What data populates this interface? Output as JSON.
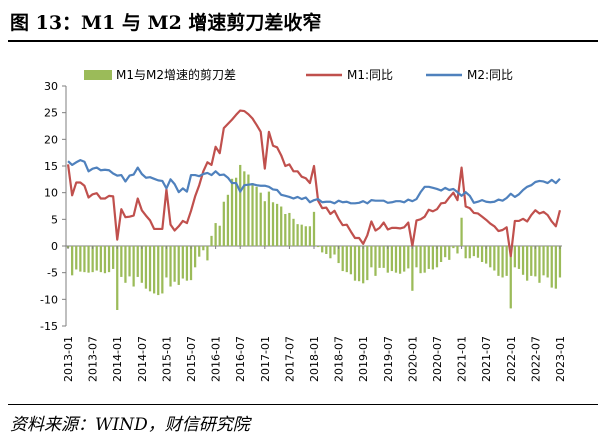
{
  "figure": {
    "title": "图 13：M1 与 M2 增速剪刀差收窄",
    "source": "资料来源：WIND，财信研究院"
  },
  "chart_data": {
    "type": "bar+line",
    "categories": [
      "2013-01",
      "2013-02",
      "2013-03",
      "2013-04",
      "2013-05",
      "2013-06",
      "2013-07",
      "2013-08",
      "2013-09",
      "2013-10",
      "2013-11",
      "2013-12",
      "2014-01",
      "2014-02",
      "2014-03",
      "2014-04",
      "2014-05",
      "2014-06",
      "2014-07",
      "2014-08",
      "2014-09",
      "2014-10",
      "2014-11",
      "2014-12",
      "2015-01",
      "2015-02",
      "2015-03",
      "2015-04",
      "2015-05",
      "2015-06",
      "2015-07",
      "2015-08",
      "2015-09",
      "2015-10",
      "2015-11",
      "2015-12",
      "2016-01",
      "2016-02",
      "2016-03",
      "2016-04",
      "2016-05",
      "2016-06",
      "2016-07",
      "2016-08",
      "2016-09",
      "2016-10",
      "2016-11",
      "2016-12",
      "2017-01",
      "2017-02",
      "2017-03",
      "2017-04",
      "2017-05",
      "2017-06",
      "2017-07",
      "2017-08",
      "2017-09",
      "2017-10",
      "2017-11",
      "2017-12",
      "2018-01",
      "2018-02",
      "2018-03",
      "2018-04",
      "2018-05",
      "2018-06",
      "2018-07",
      "2018-08",
      "2018-09",
      "2018-10",
      "2018-11",
      "2018-12",
      "2019-01",
      "2019-02",
      "2019-03",
      "2019-04",
      "2019-05",
      "2019-06",
      "2019-07",
      "2019-08",
      "2019-09",
      "2019-10",
      "2019-11",
      "2019-12",
      "2020-01",
      "2020-02",
      "2020-03",
      "2020-04",
      "2020-05",
      "2020-06",
      "2020-07",
      "2020-08",
      "2020-09",
      "2020-10",
      "2020-11",
      "2020-12",
      "2021-01",
      "2021-02",
      "2021-03",
      "2021-04",
      "2021-05",
      "2021-06",
      "2021-07",
      "2021-08",
      "2021-09",
      "2021-10",
      "2021-11",
      "2021-12",
      "2022-01",
      "2022-02",
      "2022-03",
      "2022-04",
      "2022-05",
      "2022-06",
      "2022-07",
      "2022-08",
      "2022-09",
      "2022-10",
      "2022-11",
      "2022-12",
      "2023-01"
    ],
    "tick_labels": [
      "2013-01",
      "2013-07",
      "2014-01",
      "2014-07",
      "2015-01",
      "2015-07",
      "2016-01",
      "2016-07",
      "2017-01",
      "2017-07",
      "2018-01",
      "2018-07",
      "2019-01",
      "2019-07",
      "2020-01",
      "2020-07",
      "2021-01",
      "2021-07",
      "2022-01",
      "2022-07",
      "2023-01"
    ],
    "ylim": [
      -15,
      30
    ],
    "yticks": [
      -15,
      -10,
      -5,
      0,
      5,
      10,
      15,
      20,
      25,
      30
    ],
    "legend_position": "top",
    "series": [
      {
        "name": "M1与M2增速的剪刀差",
        "kind": "bar",
        "color": "#9bbb59",
        "values": [
          -0.4,
          -5.5,
          -4.4,
          -4.8,
          -4.9,
          -5.0,
          -4.9,
          -4.6,
          -4.9,
          -5.1,
          -4.9,
          -4.3,
          -12.0,
          -5.8,
          -6.9,
          -5.7,
          -7.6,
          -5.8,
          -6.9,
          -8.0,
          -8.5,
          -8.9,
          -9.2,
          -8.9,
          -5.9,
          -7.6,
          -6.7,
          -7.3,
          -6.1,
          -6.5,
          -6.4,
          -4.0,
          -2.0,
          -0.8,
          -2.7,
          1.9,
          4.3,
          3.8,
          8.3,
          9.6,
          12.6,
          12.8,
          15.2,
          14.0,
          13.4,
          11.8,
          11.1,
          10.0,
          8.4,
          10.2,
          8.2,
          7.9,
          7.4,
          6.0,
          6.2,
          5.1,
          4.1,
          4.0,
          3.7,
          3.7,
          6.4,
          -0.2,
          -1.2,
          -1.5,
          -2.3,
          -1.6,
          -3.2,
          -4.7,
          -4.9,
          -5.3,
          -6.5,
          -6.6,
          -7.0,
          -6.4,
          -4.0,
          -5.6,
          -4.1,
          -4.1,
          -5.0,
          -4.7,
          -5.0,
          -5.2,
          -4.8,
          -4.2,
          -8.4,
          -4.0,
          -5.1,
          -5.0,
          -4.3,
          -4.4,
          -4.0,
          -3.0,
          -2.1,
          -2.6,
          -0.4,
          -1.4,
          5.3,
          -2.3,
          -2.3,
          -1.9,
          -2.2,
          -3.0,
          -3.3,
          -4.0,
          -4.6,
          -5.6,
          -5.9,
          -5.6,
          -11.7,
          -4.0,
          -4.3,
          -5.4,
          -6.5,
          -5.6,
          -5.7,
          -6.9,
          -5.5,
          -5.9,
          -7.8,
          -8.0,
          -5.9
        ]
      },
      {
        "name": "M1:同比",
        "kind": "line",
        "color": "#c0504d",
        "values": [
          15.3,
          9.5,
          11.9,
          11.9,
          11.3,
          9.1,
          9.7,
          9.9,
          8.9,
          8.9,
          9.4,
          9.3,
          1.2,
          6.9,
          5.4,
          5.5,
          5.7,
          8.9,
          6.7,
          5.7,
          4.8,
          3.2,
          3.2,
          3.2,
          10.6,
          4.0,
          2.9,
          3.7,
          4.7,
          4.3,
          6.6,
          9.3,
          11.4,
          14.0,
          15.7,
          15.2,
          18.6,
          17.4,
          22.1,
          22.9,
          23.7,
          24.6,
          25.4,
          25.3,
          24.7,
          23.9,
          22.7,
          21.4,
          14.5,
          21.4,
          18.8,
          18.5,
          17.0,
          15.0,
          15.3,
          14.0,
          14.0,
          13.0,
          12.7,
          11.8,
          15.0,
          8.5,
          7.1,
          7.2,
          6.0,
          6.6,
          5.1,
          3.9,
          4.0,
          2.7,
          1.5,
          1.5,
          0.4,
          2.0,
          4.6,
          2.9,
          3.4,
          4.4,
          3.1,
          3.4,
          3.4,
          3.3,
          3.5,
          4.4,
          0.0,
          4.8,
          5.0,
          5.5,
          6.8,
          6.5,
          6.9,
          8.0,
          8.1,
          9.1,
          10.0,
          8.6,
          14.7,
          7.4,
          7.1,
          6.2,
          6.1,
          5.5,
          4.9,
          4.2,
          3.7,
          2.8,
          3.0,
          3.5,
          -1.9,
          4.7,
          4.7,
          5.1,
          4.6,
          5.8,
          6.7,
          6.1,
          6.4,
          5.8,
          4.6,
          3.7,
          6.7
        ]
      },
      {
        "name": "M2:同比",
        "kind": "line",
        "color": "#4f81bd",
        "values": [
          15.9,
          15.2,
          15.7,
          16.1,
          15.8,
          14.0,
          14.5,
          14.7,
          14.2,
          14.3,
          14.2,
          13.6,
          13.2,
          13.3,
          12.1,
          13.2,
          13.4,
          14.7,
          13.5,
          12.8,
          12.9,
          12.6,
          12.3,
          12.2,
          10.8,
          12.5,
          11.6,
          10.1,
          10.8,
          10.2,
          13.3,
          13.3,
          13.1,
          13.5,
          13.7,
          13.3,
          14.0,
          13.3,
          13.4,
          12.8,
          11.8,
          11.8,
          10.2,
          11.4,
          11.5,
          11.6,
          11.4,
          11.3,
          11.3,
          11.1,
          10.6,
          10.5,
          9.6,
          9.4,
          9.2,
          8.9,
          9.2,
          8.8,
          9.1,
          8.2,
          8.6,
          8.8,
          8.2,
          8.3,
          8.3,
          8.0,
          8.5,
          8.2,
          8.3,
          8.0,
          8.0,
          8.1,
          8.4,
          8.0,
          8.6,
          8.5,
          8.5,
          8.5,
          8.1,
          8.2,
          8.4,
          8.4,
          8.2,
          8.7,
          8.4,
          8.8,
          10.1,
          11.1,
          11.1,
          10.9,
          10.7,
          10.4,
          10.9,
          10.5,
          10.7,
          10.1,
          9.4,
          10.1,
          9.4,
          8.1,
          8.3,
          8.6,
          8.3,
          8.2,
          8.3,
          8.7,
          8.5,
          9.0,
          9.8,
          9.2,
          9.7,
          10.5,
          11.1,
          11.4,
          12.0,
          12.2,
          12.1,
          11.8,
          12.4,
          11.8,
          12.6
        ]
      }
    ]
  }
}
